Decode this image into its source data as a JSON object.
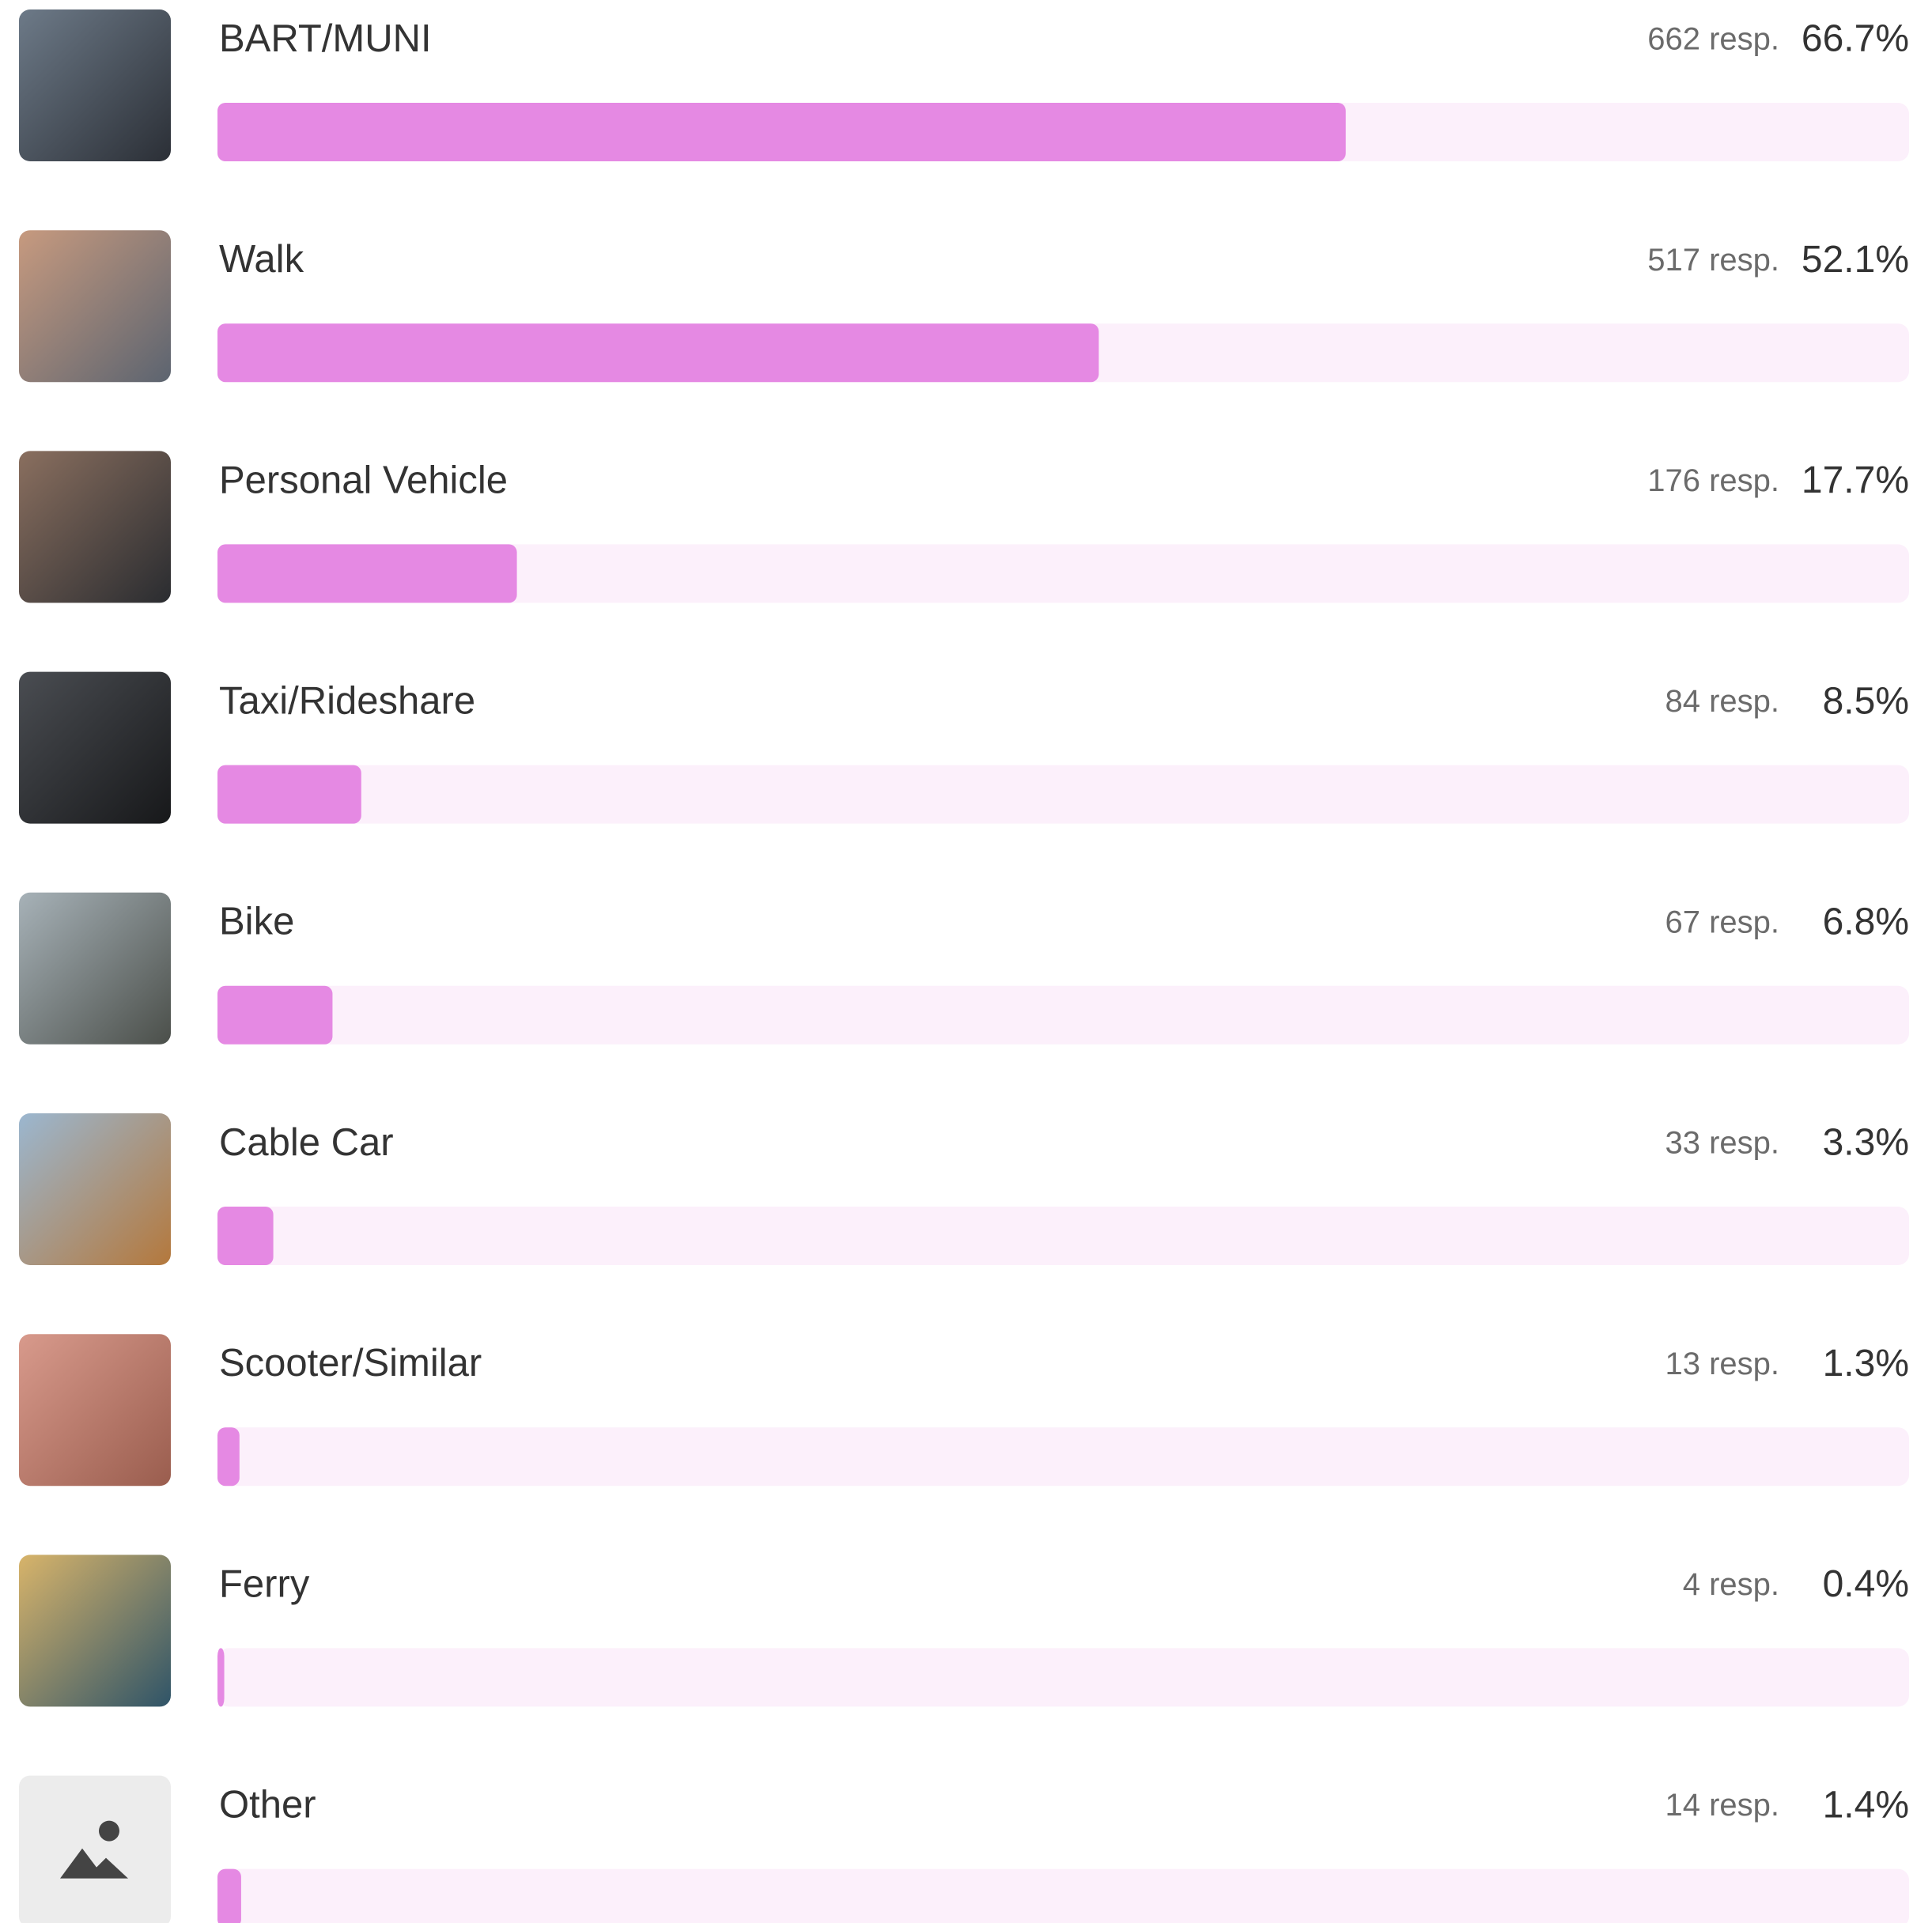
{
  "chart_data": {
    "type": "bar",
    "orientation": "horizontal",
    "categories": [
      "BART/MUNI",
      "Walk",
      "Personal Vehicle",
      "Taxi/Rideshare",
      "Bike",
      "Cable Car",
      "Scooter/Similar",
      "Ferry",
      "Other"
    ],
    "values": [
      66.7,
      52.1,
      17.7,
      8.5,
      6.8,
      3.3,
      1.3,
      0.4,
      1.4
    ],
    "value_labels": [
      "66.7%",
      "52.1%",
      "17.7%",
      "8.5%",
      "6.8%",
      "3.3%",
      "1.3%",
      "0.4%",
      "1.4%"
    ],
    "response_labels": [
      "662 resp.",
      "517 resp.",
      "176 resp.",
      "84 resp.",
      "67 resp.",
      "33 resp.",
      "13 resp.",
      "4 resp.",
      "14 resp."
    ],
    "xlim": [
      0,
      100
    ],
    "color": "#e589e3",
    "track_color": "#fcf0fb"
  }
}
